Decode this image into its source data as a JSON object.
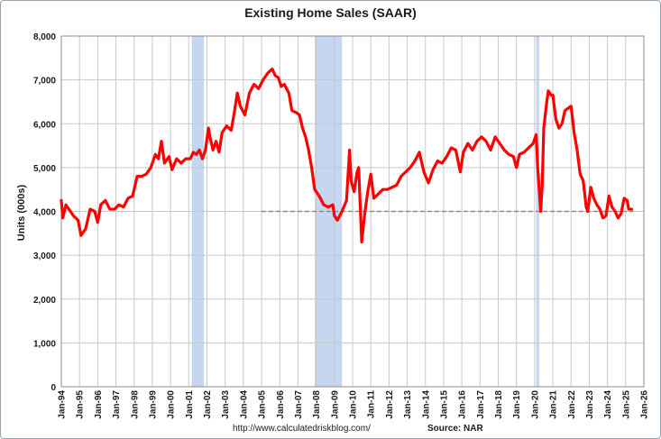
{
  "chart_data": {
    "type": "line",
    "title": "Existing Home Sales (SAAR)",
    "ylabel": "Units (000s)",
    "xlabel": "",
    "ylim": [
      0,
      8000
    ],
    "xlim": [
      "1994-01",
      "2026-01"
    ],
    "yticks": [
      "0",
      "1,000",
      "2,000",
      "3,000",
      "4,000",
      "5,000",
      "6,000",
      "7,000",
      "8,000"
    ],
    "yticks_values": [
      0,
      1000,
      2000,
      3000,
      4000,
      5000,
      6000,
      7000,
      8000
    ],
    "xticks": [
      "Jan-94",
      "Jan-95",
      "Jan-96",
      "Jan-97",
      "Jan-98",
      "Jan-99",
      "Jan-00",
      "Jan-01",
      "Jan-02",
      "Jan-03",
      "Jan-04",
      "Jan-05",
      "Jan-06",
      "Jan-07",
      "Jan-08",
      "Jan-09",
      "Jan-10",
      "Jan-11",
      "Jan-12",
      "Jan-13",
      "Jan-14",
      "Jan-15",
      "Jan-16",
      "Jan-17",
      "Jan-18",
      "Jan-19",
      "Jan-20",
      "Jan-21",
      "Jan-22",
      "Jan-23",
      "Jan-24",
      "Jan-25",
      "Jan-26"
    ],
    "grid": true,
    "recessions": [
      {
        "start": "2001-03",
        "end": "2001-11"
      },
      {
        "start": "2007-12",
        "end": "2009-06"
      },
      {
        "start": "2020-02",
        "end": "2020-04"
      }
    ],
    "reference_line": {
      "value": 4000,
      "start": "2005-01",
      "end": "2025-06",
      "style": "dashed"
    },
    "series": [
      {
        "color": "#ff0000",
        "points": [
          [
            "1994-01",
            4250
          ],
          [
            "1994-02",
            3850
          ],
          [
            "1994-04",
            4150
          ],
          [
            "1994-06",
            4050
          ],
          [
            "1994-09",
            3900
          ],
          [
            "1994-12",
            3800
          ],
          [
            "1995-02",
            3450
          ],
          [
            "1995-05",
            3600
          ],
          [
            "1995-08",
            4050
          ],
          [
            "1995-11",
            4000
          ],
          [
            "1996-01",
            3750
          ],
          [
            "1996-03",
            4150
          ],
          [
            "1996-06",
            4250
          ],
          [
            "1996-09",
            4050
          ],
          [
            "1996-12",
            4050
          ],
          [
            "1997-03",
            4150
          ],
          [
            "1997-06",
            4100
          ],
          [
            "1997-09",
            4300
          ],
          [
            "1997-12",
            4350
          ],
          [
            "1998-03",
            4800
          ],
          [
            "1998-06",
            4800
          ],
          [
            "1998-09",
            4850
          ],
          [
            "1998-12",
            5000
          ],
          [
            "1999-03",
            5300
          ],
          [
            "1999-05",
            5200
          ],
          [
            "1999-07",
            5600
          ],
          [
            "1999-09",
            5100
          ],
          [
            "1999-12",
            5250
          ],
          [
            "2000-02",
            4950
          ],
          [
            "2000-05",
            5200
          ],
          [
            "2000-08",
            5100
          ],
          [
            "2000-11",
            5200
          ],
          [
            "2001-02",
            5200
          ],
          [
            "2001-04",
            5350
          ],
          [
            "2001-06",
            5300
          ],
          [
            "2001-08",
            5400
          ],
          [
            "2001-10",
            5200
          ],
          [
            "2001-12",
            5400
          ],
          [
            "2002-02",
            5900
          ],
          [
            "2002-03",
            5700
          ],
          [
            "2002-05",
            5400
          ],
          [
            "2002-07",
            5600
          ],
          [
            "2002-09",
            5350
          ],
          [
            "2002-11",
            5800
          ],
          [
            "2003-02",
            5950
          ],
          [
            "2003-05",
            5850
          ],
          [
            "2003-07",
            6250
          ],
          [
            "2003-09",
            6700
          ],
          [
            "2003-11",
            6400
          ],
          [
            "2004-02",
            6200
          ],
          [
            "2004-05",
            6700
          ],
          [
            "2004-08",
            6900
          ],
          [
            "2004-11",
            6800
          ],
          [
            "2005-02",
            7000
          ],
          [
            "2005-05",
            7150
          ],
          [
            "2005-08",
            7250
          ],
          [
            "2005-10",
            7100
          ],
          [
            "2005-12",
            7050
          ],
          [
            "2006-02",
            6850
          ],
          [
            "2006-04",
            6900
          ],
          [
            "2006-07",
            6700
          ],
          [
            "2006-09",
            6300
          ],
          [
            "2006-12",
            6250
          ],
          [
            "2007-02",
            6200
          ],
          [
            "2007-04",
            5900
          ],
          [
            "2007-06",
            5700
          ],
          [
            "2007-08",
            5400
          ],
          [
            "2007-10",
            5000
          ],
          [
            "2007-12",
            4500
          ],
          [
            "2008-03",
            4350
          ],
          [
            "2008-06",
            4150
          ],
          [
            "2008-09",
            4100
          ],
          [
            "2008-12",
            4150
          ],
          [
            "2009-01",
            3900
          ],
          [
            "2009-03",
            3800
          ],
          [
            "2009-06",
            4000
          ],
          [
            "2009-09",
            4250
          ],
          [
            "2009-11",
            5400
          ],
          [
            "2009-12",
            4700
          ],
          [
            "2010-02",
            4450
          ],
          [
            "2010-04",
            4900
          ],
          [
            "2010-05",
            5000
          ],
          [
            "2010-07",
            3300
          ],
          [
            "2010-09",
            3950
          ],
          [
            "2010-11",
            4450
          ],
          [
            "2011-01",
            4850
          ],
          [
            "2011-03",
            4300
          ],
          [
            "2011-06",
            4400
          ],
          [
            "2011-09",
            4500
          ],
          [
            "2011-12",
            4500
          ],
          [
            "2012-03",
            4550
          ],
          [
            "2012-06",
            4600
          ],
          [
            "2012-09",
            4800
          ],
          [
            "2012-12",
            4900
          ],
          [
            "2013-03",
            5000
          ],
          [
            "2013-06",
            5150
          ],
          [
            "2013-09",
            5350
          ],
          [
            "2013-12",
            4900
          ],
          [
            "2014-03",
            4650
          ],
          [
            "2014-06",
            4950
          ],
          [
            "2014-09",
            5150
          ],
          [
            "2014-12",
            5100
          ],
          [
            "2015-03",
            5250
          ],
          [
            "2015-06",
            5450
          ],
          [
            "2015-09",
            5400
          ],
          [
            "2015-12",
            4900
          ],
          [
            "2016-02",
            5350
          ],
          [
            "2016-05",
            5550
          ],
          [
            "2016-08",
            5400
          ],
          [
            "2016-11",
            5600
          ],
          [
            "2017-02",
            5700
          ],
          [
            "2017-05",
            5600
          ],
          [
            "2017-08",
            5400
          ],
          [
            "2017-11",
            5700
          ],
          [
            "2018-02",
            5550
          ],
          [
            "2018-05",
            5400
          ],
          [
            "2018-08",
            5300
          ],
          [
            "2018-11",
            5250
          ],
          [
            "2019-01",
            5000
          ],
          [
            "2019-03",
            5300
          ],
          [
            "2019-06",
            5350
          ],
          [
            "2019-09",
            5450
          ],
          [
            "2019-12",
            5550
          ],
          [
            "2020-02",
            5750
          ],
          [
            "2020-03",
            5000
          ],
          [
            "2020-05",
            4000
          ],
          [
            "2020-06",
            4600
          ],
          [
            "2020-07",
            5900
          ],
          [
            "2020-09",
            6500
          ],
          [
            "2020-10",
            6750
          ],
          [
            "2020-12",
            6650
          ],
          [
            "2021-01",
            6650
          ],
          [
            "2021-03",
            6100
          ],
          [
            "2021-05",
            5900
          ],
          [
            "2021-07",
            6000
          ],
          [
            "2021-09",
            6300
          ],
          [
            "2021-11",
            6350
          ],
          [
            "2022-01",
            6400
          ],
          [
            "2022-03",
            5800
          ],
          [
            "2022-05",
            5400
          ],
          [
            "2022-07",
            4850
          ],
          [
            "2022-09",
            4700
          ],
          [
            "2022-11",
            4100
          ],
          [
            "2022-12",
            4000
          ],
          [
            "2023-02",
            4550
          ],
          [
            "2023-04",
            4300
          ],
          [
            "2023-06",
            4150
          ],
          [
            "2023-08",
            4050
          ],
          [
            "2023-10",
            3850
          ],
          [
            "2023-12",
            3900
          ],
          [
            "2024-02",
            4350
          ],
          [
            "2024-04",
            4100
          ],
          [
            "2024-06",
            4000
          ],
          [
            "2024-08",
            3850
          ],
          [
            "2024-10",
            3950
          ],
          [
            "2024-12",
            4300
          ],
          [
            "2025-02",
            4250
          ],
          [
            "2025-03",
            4050
          ],
          [
            "2025-05",
            4050
          ]
        ]
      }
    ],
    "footnote": "http://www.calculatedriskblog.com/",
    "source": "Source: NAR"
  }
}
